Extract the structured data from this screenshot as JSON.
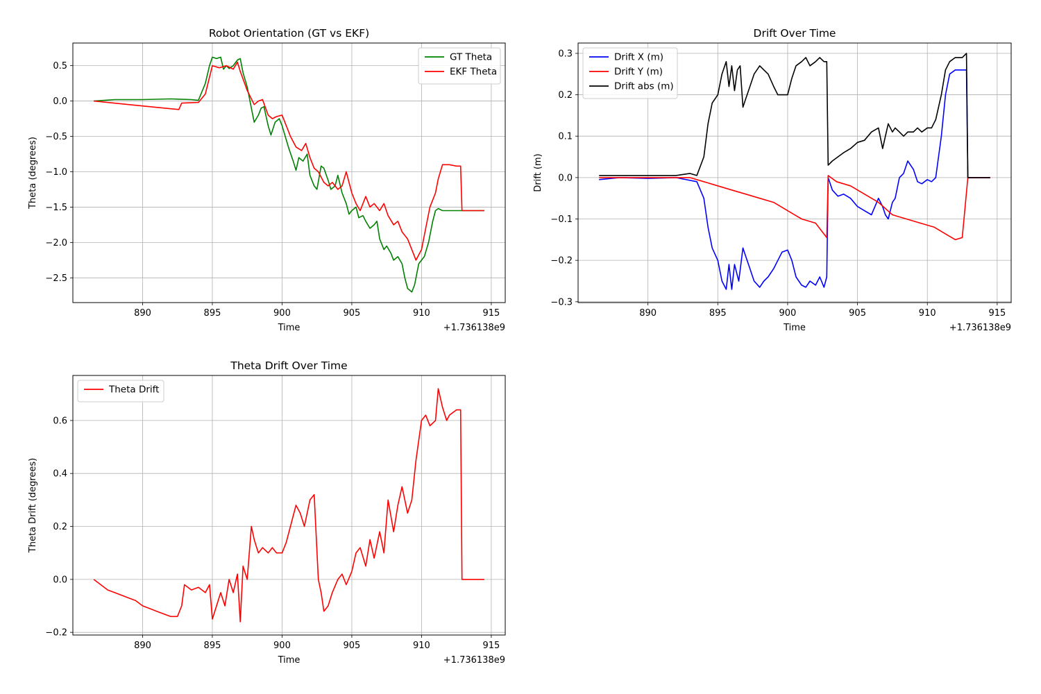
{
  "chart_data": [
    {
      "type": "line",
      "title": "Robot Orientation (GT vs EKF)",
      "xlabel": "Time",
      "ylabel": "Theta (degrees)",
      "offset_label": "+1.736138e9",
      "xlim": [
        885,
        916
      ],
      "ylim": [
        -2.85,
        0.82
      ],
      "xticks": [
        890,
        895,
        900,
        905,
        910,
        915
      ],
      "yticks": [
        -2.5,
        -2.0,
        -1.5,
        -1.0,
        -0.5,
        0.0,
        0.5
      ],
      "ytick_labels": [
        "−2.5",
        "−2.0",
        "−1.5",
        "−1.0",
        "−0.5",
        "0.0",
        "0.5"
      ],
      "grid": true,
      "legend_position": "upper-right",
      "series": [
        {
          "name": "GT Theta",
          "color": "#008000",
          "x": [
            886.5,
            888,
            890,
            892,
            893.5,
            894,
            894.5,
            894.8,
            895,
            895.3,
            895.6,
            895.8,
            896,
            896.2,
            896.5,
            896.8,
            897,
            897.2,
            897.5,
            897.8,
            898,
            898.3,
            898.5,
            898.7,
            899,
            899.2,
            899.5,
            899.8,
            900,
            900.3,
            900.5,
            900.8,
            901,
            901.2,
            901.5,
            901.8,
            902,
            902.3,
            902.5,
            902.8,
            903,
            903.3,
            903.5,
            903.8,
            904,
            904.3,
            904.6,
            904.8,
            905,
            905.3,
            905.5,
            905.8,
            906,
            906.3,
            906.6,
            906.8,
            907,
            907.3,
            907.5,
            907.8,
            908,
            908.3,
            908.6,
            908.8,
            909,
            909.3,
            909.5,
            909.8,
            910,
            910.2,
            910.5,
            910.8,
            911,
            911.2,
            911.5,
            912,
            912.5,
            912.8,
            913,
            914.5
          ],
          "y": [
            0.0,
            0.02,
            0.02,
            0.03,
            0.02,
            0.01,
            0.25,
            0.5,
            0.62,
            0.6,
            0.62,
            0.45,
            0.5,
            0.46,
            0.5,
            0.58,
            0.6,
            0.4,
            0.2,
            -0.1,
            -0.3,
            -0.2,
            -0.1,
            -0.08,
            -0.35,
            -0.48,
            -0.3,
            -0.25,
            -0.35,
            -0.55,
            -0.68,
            -0.85,
            -0.98,
            -0.8,
            -0.85,
            -0.75,
            -1.05,
            -1.2,
            -1.25,
            -0.92,
            -0.95,
            -1.12,
            -1.25,
            -1.2,
            -1.05,
            -1.3,
            -1.45,
            -1.6,
            -1.55,
            -1.5,
            -1.65,
            -1.62,
            -1.7,
            -1.8,
            -1.75,
            -1.7,
            -1.95,
            -2.1,
            -2.05,
            -2.15,
            -2.25,
            -2.2,
            -2.3,
            -2.5,
            -2.65,
            -2.7,
            -2.6,
            -2.3,
            -2.25,
            -2.2,
            -2.0,
            -1.7,
            -1.55,
            -1.52,
            -1.55,
            -1.55,
            -1.55,
            -1.55,
            -1.55,
            -1.55
          ]
        },
        {
          "name": "EKF Theta",
          "color": "#ff0000",
          "x": [
            886.5,
            889,
            891,
            892.6,
            892.8,
            894,
            894.5,
            895,
            895.5,
            896,
            896.5,
            896.8,
            897,
            897.5,
            898,
            898.3,
            898.6,
            899,
            899.3,
            899.6,
            900,
            900.3,
            900.6,
            901,
            901.4,
            901.7,
            902,
            902.3,
            902.6,
            903,
            903.3,
            903.6,
            904,
            904.3,
            904.6,
            905,
            905.3,
            905.6,
            906,
            906.3,
            906.6,
            907,
            907.3,
            907.6,
            908,
            908.3,
            908.6,
            909,
            909.3,
            909.6,
            910,
            910.3,
            910.6,
            911,
            911.2,
            911.5,
            911.8,
            912,
            912.5,
            912.8,
            912.9,
            914.5
          ],
          "y": [
            0.0,
            -0.05,
            -0.09,
            -0.12,
            -0.03,
            -0.02,
            0.1,
            0.5,
            0.47,
            0.5,
            0.45,
            0.55,
            0.42,
            0.15,
            -0.05,
            0.0,
            0.02,
            -0.2,
            -0.25,
            -0.22,
            -0.2,
            -0.35,
            -0.5,
            -0.65,
            -0.7,
            -0.6,
            -0.8,
            -0.95,
            -1.0,
            -1.15,
            -1.2,
            -1.15,
            -1.25,
            -1.2,
            -1.0,
            -1.3,
            -1.45,
            -1.55,
            -1.35,
            -1.5,
            -1.45,
            -1.55,
            -1.45,
            -1.62,
            -1.75,
            -1.7,
            -1.85,
            -1.95,
            -2.1,
            -2.25,
            -2.1,
            -1.8,
            -1.5,
            -1.3,
            -1.1,
            -0.9,
            -0.9,
            -0.9,
            -0.92,
            -0.92,
            -1.55,
            -1.55
          ]
        }
      ]
    },
    {
      "type": "line",
      "title": "Drift Over Time",
      "xlabel": "Time",
      "ylabel": "Drift (m)",
      "offset_label": "+1.736138e9",
      "xlim": [
        885,
        916
      ],
      "ylim": [
        -0.302,
        0.325
      ],
      "xticks": [
        890,
        895,
        900,
        905,
        910,
        915
      ],
      "yticks": [
        -0.3,
        -0.2,
        -0.1,
        0.0,
        0.1,
        0.2,
        0.3
      ],
      "ytick_labels": [
        "−0.3",
        "−0.2",
        "−0.1",
        "0.0",
        "0.1",
        "0.2",
        "0.3"
      ],
      "grid": true,
      "legend_position": "upper-left",
      "series": [
        {
          "name": "Drift X (m)",
          "color": "#0000ff",
          "x": [
            886.5,
            888,
            890,
            892,
            893.5,
            894,
            894.3,
            894.6,
            895,
            895.3,
            895.6,
            895.8,
            896,
            896.2,
            896.5,
            896.8,
            897,
            897.3,
            897.6,
            898,
            898.3,
            898.6,
            899,
            899.3,
            899.6,
            900,
            900.3,
            900.6,
            901,
            901.3,
            901.6,
            902,
            902.3,
            902.6,
            902.8,
            902.9,
            903.2,
            903.6,
            904,
            904.5,
            905,
            905.5,
            906,
            906.5,
            906.8,
            907,
            907.2,
            907.5,
            907.7,
            908,
            908.3,
            908.6,
            909,
            909.3,
            909.6,
            910,
            910.3,
            910.6,
            911,
            911.3,
            911.6,
            912,
            912.5,
            912.8,
            912.9,
            914.5
          ],
          "y": [
            -0.005,
            0.0,
            -0.002,
            0.0,
            -0.01,
            -0.05,
            -0.12,
            -0.17,
            -0.2,
            -0.25,
            -0.27,
            -0.21,
            -0.27,
            -0.21,
            -0.25,
            -0.17,
            -0.19,
            -0.22,
            -0.25,
            -0.265,
            -0.25,
            -0.24,
            -0.22,
            -0.2,
            -0.18,
            -0.175,
            -0.2,
            -0.24,
            -0.26,
            -0.265,
            -0.25,
            -0.26,
            -0.24,
            -0.265,
            -0.24,
            0.0,
            -0.03,
            -0.045,
            -0.04,
            -0.05,
            -0.07,
            -0.08,
            -0.09,
            -0.05,
            -0.07,
            -0.09,
            -0.1,
            -0.06,
            -0.05,
            0.0,
            0.01,
            0.04,
            0.02,
            -0.01,
            -0.015,
            -0.005,
            -0.01,
            0.0,
            0.1,
            0.2,
            0.25,
            0.26,
            0.26,
            0.26,
            0.0,
            0.0
          ]
        },
        {
          "name": "Drift Y (m)",
          "color": "#ff0000",
          "x": [
            886.5,
            890,
            893,
            894,
            895,
            896,
            897,
            898,
            899,
            900,
            901,
            902,
            902.8,
            902.9,
            903.5,
            904.5,
            905.5,
            906.5,
            907.5,
            908.5,
            909.5,
            910.5,
            911.5,
            912,
            912.5,
            912.9,
            914.5
          ],
          "y": [
            0.0,
            0.0,
            0.0,
            -0.01,
            -0.02,
            -0.03,
            -0.04,
            -0.05,
            -0.06,
            -0.08,
            -0.1,
            -0.11,
            -0.145,
            0.005,
            -0.01,
            -0.02,
            -0.04,
            -0.06,
            -0.09,
            -0.1,
            -0.11,
            -0.12,
            -0.14,
            -0.15,
            -0.145,
            0.0,
            0.0
          ]
        },
        {
          "name": "Drift abs (m)",
          "color": "#000000",
          "x": [
            886.5,
            890,
            892,
            893,
            893.5,
            894,
            894.3,
            894.6,
            895,
            895.3,
            895.6,
            895.8,
            896,
            896.2,
            896.4,
            896.6,
            896.8,
            897,
            897.3,
            897.6,
            898,
            898.3,
            898.6,
            899,
            899.3,
            899.6,
            900,
            900.3,
            900.6,
            901,
            901.3,
            901.6,
            902,
            902.3,
            902.6,
            902.8,
            902.9,
            903.2,
            903.6,
            904,
            904.5,
            905,
            905.5,
            906,
            906.5,
            906.8,
            907,
            907.2,
            907.5,
            907.7,
            908,
            908.3,
            908.6,
            909,
            909.3,
            909.6,
            910,
            910.3,
            910.6,
            911,
            911.3,
            911.6,
            912,
            912.5,
            912.8,
            912.9,
            914.5
          ],
          "y": [
            0.005,
            0.005,
            0.005,
            0.01,
            0.005,
            0.05,
            0.13,
            0.18,
            0.2,
            0.25,
            0.28,
            0.22,
            0.27,
            0.21,
            0.26,
            0.27,
            0.17,
            0.19,
            0.22,
            0.25,
            0.27,
            0.26,
            0.25,
            0.22,
            0.2,
            0.2,
            0.2,
            0.24,
            0.27,
            0.28,
            0.29,
            0.27,
            0.28,
            0.29,
            0.28,
            0.28,
            0.03,
            0.04,
            0.05,
            0.06,
            0.07,
            0.085,
            0.09,
            0.11,
            0.12,
            0.07,
            0.1,
            0.13,
            0.11,
            0.12,
            0.11,
            0.1,
            0.11,
            0.11,
            0.12,
            0.11,
            0.12,
            0.12,
            0.14,
            0.2,
            0.26,
            0.28,
            0.29,
            0.29,
            0.3,
            0.0,
            0.0
          ]
        }
      ]
    },
    {
      "type": "line",
      "title": "Theta Drift Over Time",
      "xlabel": "Time",
      "ylabel": "Theta Drift (degrees)",
      "offset_label": "+1.736138e9",
      "xlim": [
        885,
        916
      ],
      "ylim": [
        -0.21,
        0.77
      ],
      "xticks": [
        890,
        895,
        900,
        905,
        910,
        915
      ],
      "yticks": [
        -0.2,
        0.0,
        0.2,
        0.4,
        0.6
      ],
      "ytick_labels": [
        "−0.2",
        "0.0",
        "0.2",
        "0.4",
        "0.6"
      ],
      "grid": true,
      "legend_position": "upper-left",
      "series": [
        {
          "name": "Theta Drift",
          "color": "#ff0000",
          "x": [
            886.5,
            887,
            887.5,
            888,
            888.5,
            889,
            889.5,
            890,
            890.5,
            891,
            891.5,
            892,
            892.5,
            892.8,
            893,
            893.5,
            894,
            894.5,
            894.8,
            895,
            895.3,
            895.6,
            895.9,
            896.2,
            896.5,
            896.8,
            897,
            897.2,
            897.5,
            897.8,
            898,
            898.3,
            898.6,
            899,
            899.3,
            899.6,
            900,
            900.3,
            900.6,
            901,
            901.3,
            901.6,
            902,
            902.3,
            902.6,
            902.8,
            903,
            903.3,
            903.6,
            904,
            904.3,
            904.6,
            905,
            905.3,
            905.6,
            906,
            906.3,
            906.6,
            907,
            907.3,
            907.6,
            908,
            908.3,
            908.6,
            909,
            909.3,
            909.6,
            910,
            910.3,
            910.6,
            911,
            911.2,
            911.5,
            911.8,
            912,
            912.5,
            912.8,
            912.9,
            914.5
          ],
          "y": [
            0.0,
            -0.02,
            -0.04,
            -0.05,
            -0.06,
            -0.07,
            -0.08,
            -0.1,
            -0.11,
            -0.12,
            -0.13,
            -0.14,
            -0.14,
            -0.1,
            -0.02,
            -0.04,
            -0.03,
            -0.05,
            -0.02,
            -0.15,
            -0.1,
            -0.05,
            -0.1,
            0.0,
            -0.05,
            0.02,
            -0.16,
            0.05,
            0.0,
            0.2,
            0.15,
            0.1,
            0.12,
            0.1,
            0.12,
            0.1,
            0.1,
            0.14,
            0.2,
            0.28,
            0.25,
            0.2,
            0.3,
            0.32,
            0.0,
            -0.05,
            -0.12,
            -0.1,
            -0.05,
            0.0,
            0.02,
            -0.02,
            0.03,
            0.1,
            0.12,
            0.05,
            0.15,
            0.08,
            0.18,
            0.1,
            0.3,
            0.18,
            0.28,
            0.35,
            0.25,
            0.3,
            0.45,
            0.6,
            0.62,
            0.58,
            0.6,
            0.72,
            0.65,
            0.6,
            0.62,
            0.64,
            0.64,
            0.0,
            0.0
          ]
        }
      ]
    }
  ]
}
